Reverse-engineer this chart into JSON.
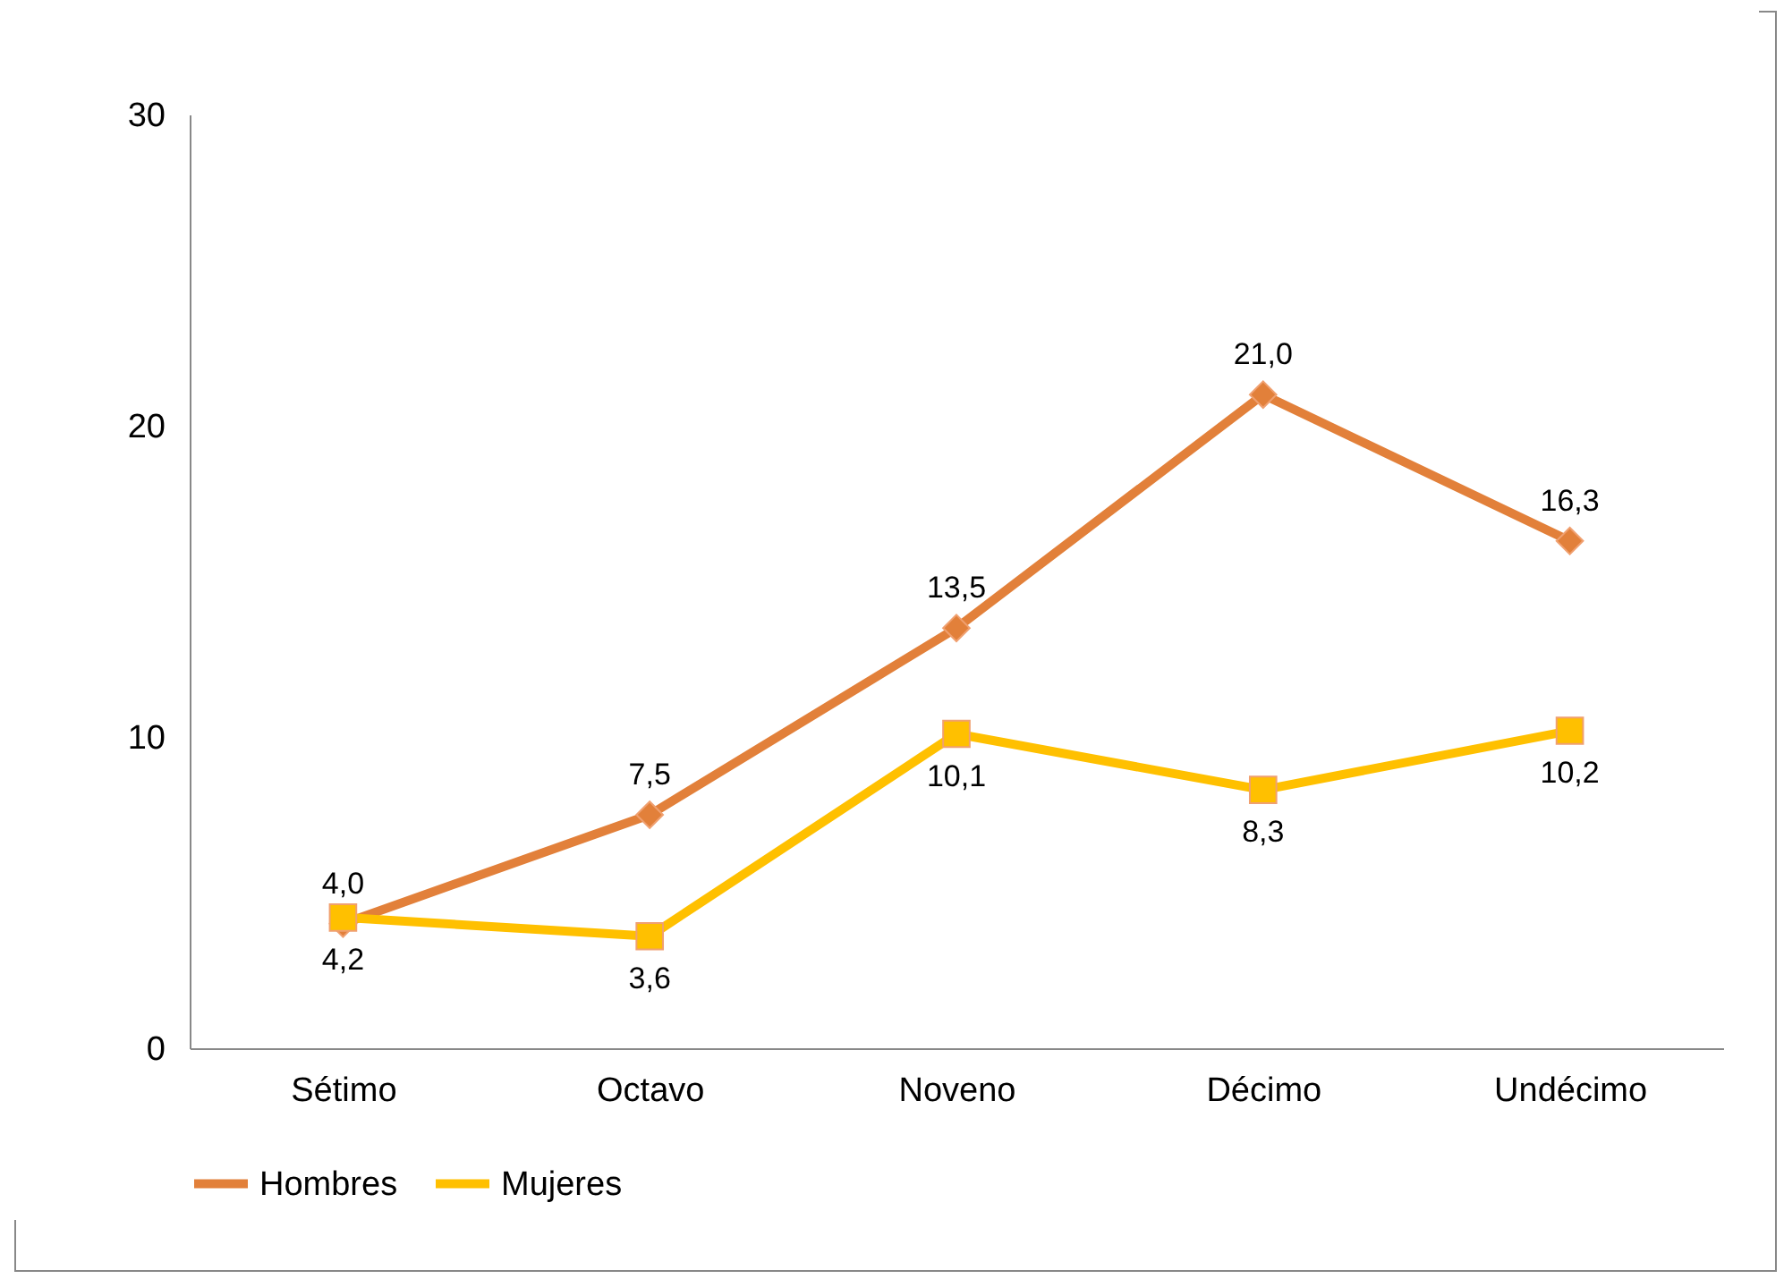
{
  "chart_data": {
    "type": "line",
    "categories": [
      "Sétimo",
      "Octavo",
      "Noveno",
      "Décimo",
      "Undécimo"
    ],
    "series": [
      {
        "name": "Hombres",
        "color": "#e2803a",
        "marker": "diamond",
        "values": [
          4.0,
          7.5,
          13.5,
          21.0,
          16.3
        ],
        "value_labels": [
          "4,0",
          "7,5",
          "13,5",
          "21,0",
          "16,3"
        ]
      },
      {
        "name": "Mujeres",
        "color": "#ffc000",
        "marker": "square",
        "values": [
          4.2,
          3.6,
          10.1,
          8.3,
          10.2
        ],
        "value_labels": [
          "4,2",
          "3,6",
          "10,1",
          "8,3",
          "10,2"
        ]
      }
    ],
    "ylim": [
      0,
      30
    ],
    "yticks": [
      0,
      10,
      20,
      30
    ],
    "grid": false,
    "legend": "bottom"
  }
}
